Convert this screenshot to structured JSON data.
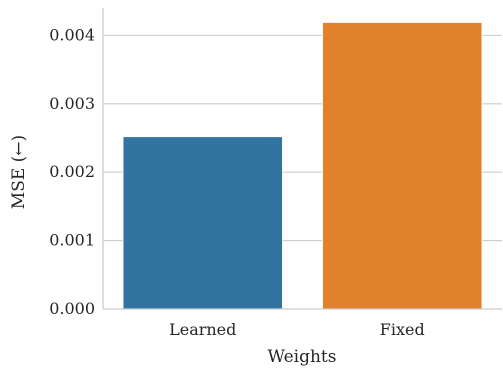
{
  "chart_data": {
    "type": "bar",
    "categories": [
      "Learned",
      "Fixed"
    ],
    "values": [
      0.00252,
      0.00419
    ],
    "colors": [
      "#3274a1",
      "#e1812c"
    ],
    "xlabel": "Weights",
    "ylabel": "MSE (←)",
    "ylim": [
      0,
      0.0044
    ],
    "yticks": [
      0,
      0.001,
      0.002,
      0.003,
      0.004
    ],
    "ytick_labels": [
      "0.000",
      "0.001",
      "0.002",
      "0.003",
      "0.004"
    ],
    "grid": "horizontal",
    "legend": "none"
  }
}
